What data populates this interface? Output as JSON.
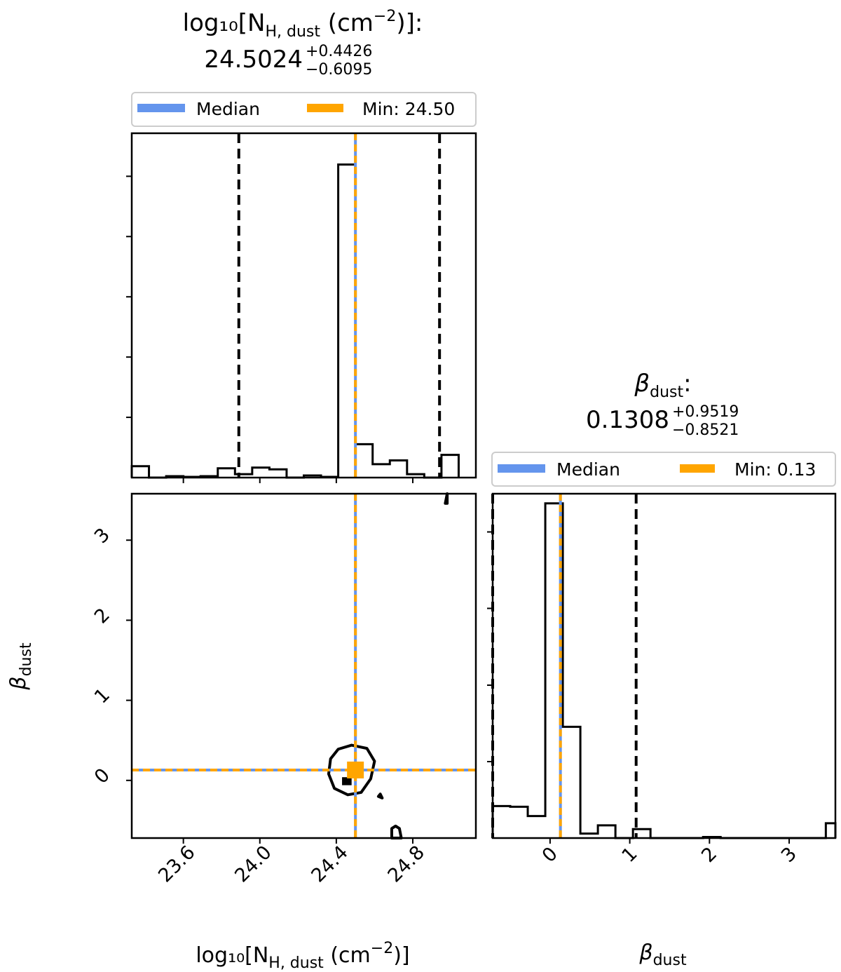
{
  "colors": {
    "median": "#6495ED",
    "min": "#FFA500",
    "hist": "#000000",
    "quantile": "#000000"
  },
  "chart_data": [
    {
      "type": "histogram",
      "panel": "top-left",
      "title": {
        "label": "log₁₀[N",
        "label_sub": "H, dust",
        "label_tail": " (cm",
        "label_exp": "−2",
        "label_end": ")]:",
        "value": "24.5024",
        "upper": "+0.4426",
        "lower": "−0.6095"
      },
      "legend": {
        "position": "top",
        "entries": [
          {
            "label": "Median",
            "color_key": "median"
          },
          {
            "label": "Min: 24.50",
            "color_key": "min"
          }
        ]
      },
      "xlim": [
        23.33,
        25.13
      ],
      "ylim": [
        0,
        1.0
      ],
      "bin_edges": [
        23.33,
        23.42,
        23.51,
        23.6,
        23.69,
        23.78,
        23.87,
        23.96,
        24.05,
        24.14,
        24.23,
        24.32,
        24.41,
        24.5,
        24.59,
        24.68,
        24.77,
        24.86,
        24.95,
        25.04
      ],
      "counts": [
        0.033,
        0.0,
        0.004,
        0.002,
        0.004,
        0.027,
        0.01,
        0.029,
        0.024,
        0.0,
        0.006,
        0.002,
        0.909,
        0.097,
        0.039,
        0.05,
        0.01,
        0.0,
        0.066
      ],
      "median": 24.5,
      "min": 24.5,
      "quantiles": [
        23.89,
        24.94
      ],
      "xticks": [
        23.6,
        24.0,
        24.4,
        24.8
      ],
      "ytick_fractions": [
        0.175,
        0.35,
        0.525,
        0.7,
        0.875
      ]
    },
    {
      "type": "contour",
      "panel": "bottom-left",
      "xlabel": {
        "text": "log₁₀[N",
        "sub": "H, dust",
        "tail": " (cm",
        "exp": "−2",
        "end": ")]"
      },
      "ylabel": {
        "text": "β",
        "sub": "dust"
      },
      "xlim": [
        23.33,
        25.13
      ],
      "ylim": [
        -0.72,
        3.58
      ],
      "xticks": [
        {
          "v": 23.6,
          "label": "23.6"
        },
        {
          "v": 24.0,
          "label": "24.0"
        },
        {
          "v": 24.4,
          "label": "24.4"
        },
        {
          "v": 24.8,
          "label": "24.8"
        }
      ],
      "yticks": [
        {
          "v": 0,
          "label": "0"
        },
        {
          "v": 1,
          "label": "1"
        },
        {
          "v": 2,
          "label": "2"
        },
        {
          "v": 3,
          "label": "3"
        }
      ],
      "median": {
        "x": 24.5,
        "y": 0.13
      },
      "min": {
        "x": 24.5,
        "y": 0.13
      },
      "contours": [
        {
          "points": [
            [
              24.41,
              0.39
            ],
            [
              24.48,
              0.44
            ],
            [
              24.56,
              0.4
            ],
            [
              24.6,
              0.24
            ],
            [
              24.58,
              0.02
            ],
            [
              24.53,
              -0.15
            ],
            [
              24.46,
              -0.18
            ],
            [
              24.39,
              -0.1
            ],
            [
              24.36,
              0.08
            ],
            [
              24.37,
              0.27
            ]
          ]
        },
        {
          "points": [
            [
              24.71,
              -0.57
            ],
            [
              24.73,
              -0.6
            ],
            [
              24.74,
              -0.72
            ],
            [
              24.69,
              -0.72
            ],
            [
              24.69,
              -0.6
            ]
          ]
        },
        {
          "points": [
            [
              24.97,
              3.46
            ],
            [
              24.98,
              3.58
            ],
            [
              24.98,
              3.46
            ]
          ]
        },
        {
          "points": [
            [
              24.63,
              -0.17
            ],
            [
              24.64,
              -0.22
            ],
            [
              24.62,
              -0.2
            ]
          ]
        }
      ],
      "dense": [
        {
          "x0": 24.43,
          "x1": 24.48,
          "y0": -0.06,
          "y1": 0.04
        }
      ]
    },
    {
      "type": "histogram",
      "panel": "bottom-right",
      "title": {
        "label": "β",
        "label_sub": "dust",
        "label_end": ":",
        "value": "0.1308",
        "upper": "+0.9519",
        "lower": "−0.8521"
      },
      "xlabel": {
        "text": "β",
        "sub": "dust"
      },
      "legend": {
        "position": "top",
        "entries": [
          {
            "label": "Median",
            "color_key": "median"
          },
          {
            "label": "Min: 0.13",
            "color_key": "min"
          }
        ]
      },
      "xlim": [
        -0.72,
        3.58
      ],
      "ylim": [
        0,
        1.0
      ],
      "bin_edges": [
        -0.72,
        -0.5,
        -0.28,
        -0.06,
        0.16,
        0.38,
        0.6,
        0.82,
        1.04,
        1.26,
        1.48,
        1.7,
        1.92,
        2.14,
        2.36,
        2.58,
        2.8,
        3.02,
        3.24,
        3.46,
        3.58
      ],
      "counts": [
        0.093,
        0.091,
        0.064,
        0.972,
        0.323,
        0.013,
        0.037,
        0.0,
        0.026,
        0.0,
        0.0,
        0.0,
        0.003,
        0.0,
        0.0,
        0.0,
        0.0,
        0.0,
        0.0,
        0.043
      ],
      "median": 0.13,
      "min": 0.13,
      "quantiles": [
        -0.72,
        1.08
      ],
      "xticks": [
        {
          "v": 0,
          "label": "0"
        },
        {
          "v": 1,
          "label": "1"
        },
        {
          "v": 2,
          "label": "2"
        },
        {
          "v": 3,
          "label": "3"
        }
      ],
      "ytick_fractions": [
        0.222,
        0.444,
        0.667,
        0.889
      ]
    }
  ]
}
